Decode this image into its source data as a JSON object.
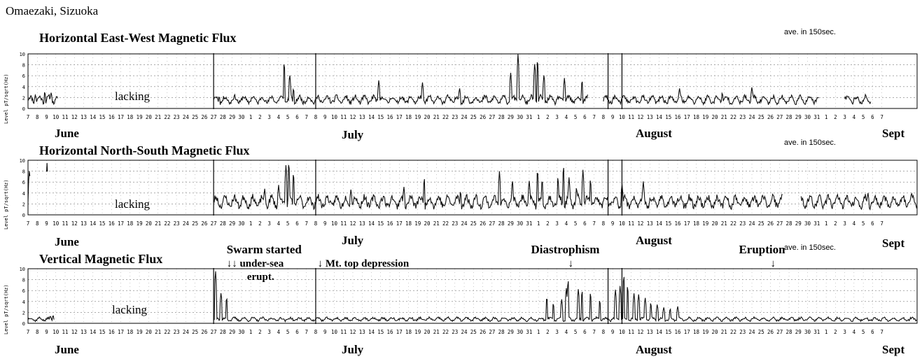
{
  "site": "Omaezaki, Sizuoka",
  "colors": {
    "trace": "#111111",
    "grid": "#7a7a7a",
    "frame": "#000000"
  },
  "chart_data": [
    {
      "type": "line",
      "title": "Horizontal East-West Magnetic Flux",
      "note": "ave. in 150sec.",
      "ylabel": "Level pT/sqrt(Hz)",
      "ylim": [
        0,
        10
      ],
      "yticks": [
        "0",
        "2",
        "4",
        "6",
        "8",
        "10"
      ],
      "lacking_label": "lacking",
      "months": [
        "June",
        "July",
        "August",
        "Sept"
      ],
      "series": [
        {
          "seed": 11,
          "base": 1.6,
          "segments": [
            [
              7,
              10.2
            ],
            [
              27,
              67.3
            ],
            [
              69,
              92.2
            ],
            [
              95,
              97.8
            ]
          ],
          "spikes": [
            [
              7.8,
              2.6
            ],
            [
              8.8,
              3.2
            ],
            [
              9.5,
              3.0
            ],
            [
              27.6,
              2.3
            ],
            [
              34.6,
              8.8
            ],
            [
              35.2,
              6.4
            ],
            [
              35.6,
              3.8
            ],
            [
              44.8,
              5.3
            ],
            [
              49.5,
              4.9
            ],
            [
              53.5,
              3.8
            ],
            [
              59.0,
              6.8
            ],
            [
              59.8,
              10.2
            ],
            [
              61.6,
              8.6
            ],
            [
              61.9,
              9.4
            ],
            [
              62.6,
              6.4
            ],
            [
              64.8,
              5.6
            ],
            [
              66.7,
              5.4
            ],
            [
              77.2,
              3.8
            ],
            [
              81.8,
              3.0
            ],
            [
              85.0,
              4.0
            ],
            [
              95.5,
              1.8
            ],
            [
              99.1,
              7.8
            ],
            [
              99.3,
              6.6
            ],
            [
              101.4,
              4.0
            ],
            [
              102.6,
              4.6
            ]
          ]
        }
      ]
    },
    {
      "type": "line",
      "title": "Horizontal North-South Magnetic Flux",
      "note": "ave. in 150sec.",
      "ylabel": "Level pT/sqrt(Hz)",
      "ylim": [
        0,
        10
      ],
      "yticks": [
        "0",
        "2",
        "4",
        "6",
        "8",
        "10"
      ],
      "lacking_label": "lacking",
      "months": [
        "June",
        "July",
        "August",
        "Sept"
      ],
      "series": [
        {
          "seed": 23,
          "base": 2.4,
          "segments": [
            [
              7,
              7.2
            ],
            [
              9.0,
              9.1
            ],
            [
              27,
              88.3
            ],
            [
              90.3,
              102.8
            ]
          ],
          "spikes": [
            [
              7.15,
              8.5
            ],
            [
              9.05,
              9.5
            ],
            [
              32.5,
              4.8
            ],
            [
              34.0,
              5.5
            ],
            [
              34.8,
              9.5
            ],
            [
              35.1,
              10.0
            ],
            [
              35.6,
              8.0
            ],
            [
              41.8,
              4.8
            ],
            [
              47.5,
              5.2
            ],
            [
              49.7,
              7.0
            ],
            [
              53.6,
              4.5
            ],
            [
              57.8,
              8.2
            ],
            [
              59.2,
              6.6
            ],
            [
              61.0,
              6.4
            ],
            [
              61.9,
              8.6
            ],
            [
              62.4,
              6.8
            ],
            [
              64.1,
              7.2
            ],
            [
              64.7,
              9.3
            ],
            [
              65.3,
              7.0
            ],
            [
              66.1,
              5.2
            ],
            [
              66.8,
              8.4
            ],
            [
              67.6,
              6.7
            ],
            [
              71.0,
              5.8
            ],
            [
              73.3,
              6.2
            ],
            [
              97.5,
              4.2
            ],
            [
              102.2,
              4.3
            ]
          ]
        }
      ]
    },
    {
      "type": "line",
      "title": "Vertical Magnetic Flux",
      "note": "ave. in 150sec.",
      "ylabel": "Level pT/sqrt(Hz)",
      "ylim": [
        0,
        10
      ],
      "yticks": [
        "0",
        "2",
        "4",
        "6",
        "8",
        "10"
      ],
      "lacking_label": "lacking",
      "months": [
        "June",
        "July",
        "August",
        "Sept"
      ],
      "annotations": [
        {
          "text": "Swarm started",
          "day": 28.4,
          "big": true,
          "line": 0
        },
        {
          "text": "↓↓ under-sea",
          "day": 28.4,
          "big": false,
          "line": 1
        },
        {
          "text": "erupt.",
          "day": 30.6,
          "big": false,
          "line": 2
        },
        {
          "text": "↓ Mt. top depression",
          "day": 38.2,
          "big": false,
          "line": 1
        },
        {
          "text": "Diastrophism",
          "day": 61.2,
          "big": true,
          "line": 0
        },
        {
          "text": "↓",
          "day": 65.2,
          "big": false,
          "line": 1
        },
        {
          "text": "Eruption",
          "day": 83.6,
          "big": true,
          "line": 0
        },
        {
          "text": "↓",
          "day": 87.0,
          "big": false,
          "line": 1
        }
      ],
      "series": [
        {
          "seed": 37,
          "base": 0.75,
          "segments": [
            [
              7,
              9.8
            ],
            [
              27,
              102.8
            ]
          ],
          "spikes": [
            [
              9.4,
              1.4
            ],
            [
              9.7,
              1.5
            ],
            [
              27.2,
              10.0
            ],
            [
              27.8,
              5.8
            ],
            [
              28.4,
              4.9
            ],
            [
              62.9,
              5.0
            ],
            [
              63.6,
              3.8
            ],
            [
              64.5,
              4.5
            ],
            [
              65.0,
              6.6
            ],
            [
              65.2,
              8.3
            ],
            [
              66.3,
              6.4
            ],
            [
              66.7,
              6.2
            ],
            [
              67.6,
              5.8
            ],
            [
              68.6,
              4.4
            ],
            [
              70.3,
              6.3
            ],
            [
              70.8,
              7.0
            ],
            [
              71.2,
              9.2
            ],
            [
              71.6,
              7.1
            ],
            [
              72.3,
              5.6
            ],
            [
              72.8,
              5.4
            ],
            [
              73.5,
              4.8
            ],
            [
              74.1,
              3.9
            ],
            [
              74.8,
              3.5
            ],
            [
              75.5,
              3.0
            ],
            [
              76.2,
              2.8
            ],
            [
              77.0,
              3.2
            ]
          ]
        }
      ]
    }
  ],
  "x_axis": {
    "tick_labels": [
      "7",
      "8",
      "9",
      "10",
      "11",
      "12",
      "13",
      "14",
      "15",
      "16",
      "17",
      "18",
      "19",
      "20",
      "21",
      "22",
      "23",
      "24",
      "25",
      "26",
      "27",
      "28",
      "29",
      "30",
      "1",
      "2",
      "3",
      "4",
      "5",
      "6",
      "7",
      "8",
      "9",
      "10",
      "11",
      "12",
      "13",
      "14",
      "15",
      "16",
      "17",
      "18",
      "19",
      "20",
      "21",
      "22",
      "23",
      "24",
      "25",
      "26",
      "27",
      "28",
      "29",
      "30",
      "31",
      "1",
      "2",
      "3",
      "4",
      "5",
      "6",
      "7",
      "8",
      "9",
      "10",
      "11",
      "12",
      "13",
      "14",
      "15",
      "16",
      "17",
      "18",
      "19",
      "20",
      "21",
      "22",
      "23",
      "24",
      "25",
      "26",
      "27",
      "28",
      "29",
      "30",
      "31",
      "1",
      "2",
      "3",
      "4",
      "5",
      "6",
      "7"
    ]
  }
}
